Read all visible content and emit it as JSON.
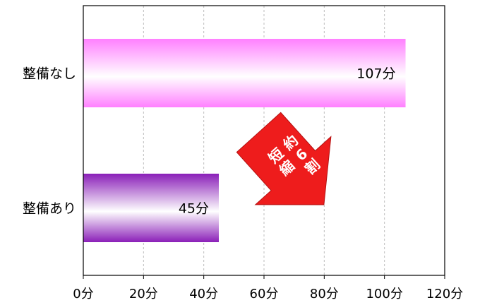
{
  "chart_data": {
    "type": "bar",
    "orientation": "horizontal",
    "categories": [
      "整備なし",
      "整備あり"
    ],
    "values": [
      107,
      45
    ],
    "data_labels": [
      "107分",
      "45分"
    ],
    "xlim": [
      0,
      120
    ],
    "x_ticks": [
      0,
      20,
      40,
      60,
      80,
      100,
      120
    ],
    "x_tick_labels": [
      "0分",
      "20分",
      "40分",
      "60分",
      "80分",
      "100分",
      "120分"
    ],
    "grid": {
      "vertical": true,
      "style": "dashed"
    },
    "bar_colors": [
      {
        "edge": "#ff80ff",
        "center": "#ffffff"
      },
      {
        "edge": "#8a1fb8",
        "center": "#ffffff"
      }
    ],
    "annotation": {
      "shape": "arrow",
      "color": "#ee1c1c",
      "lines": [
        "約",
        "6",
        "割",
        "短",
        "縮"
      ]
    }
  }
}
